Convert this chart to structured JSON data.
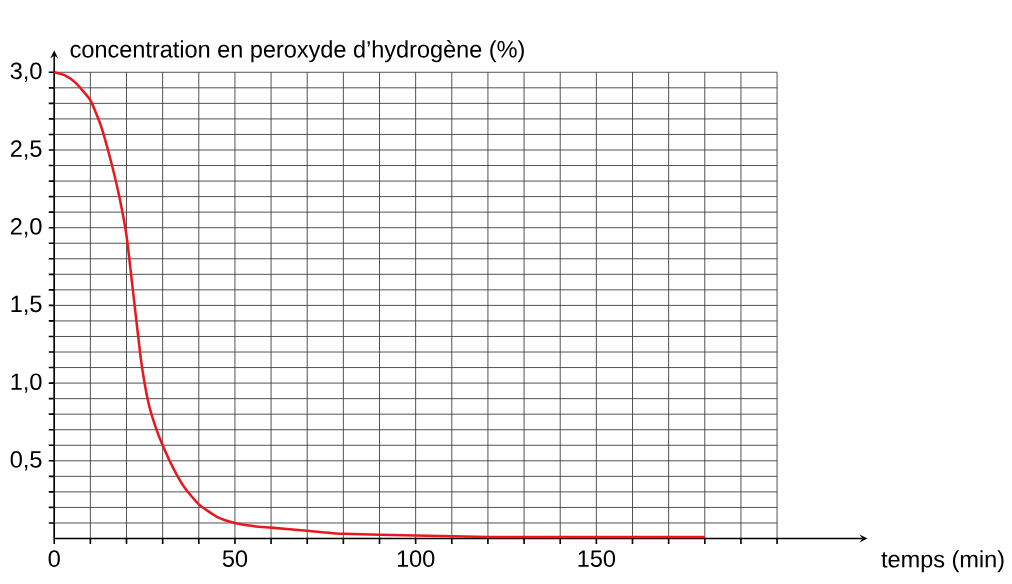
{
  "chart_data": {
    "type": "line",
    "ylabel": "concentration en peroxyde d’hydrogène (%)",
    "xlabel": "temps (min)",
    "x": [
      0,
      3,
      6,
      10,
      13,
      16,
      18,
      20,
      22,
      24,
      26,
      28,
      30,
      33,
      36,
      40,
      45,
      50,
      55,
      60,
      70,
      80,
      100,
      120,
      150,
      180
    ],
    "series": [
      {
        "color": "#e8191e",
        "values": [
          3.0,
          2.98,
          2.93,
          2.82,
          2.65,
          2.4,
          2.2,
          1.95,
          1.55,
          1.15,
          0.88,
          0.72,
          0.6,
          0.45,
          0.33,
          0.22,
          0.14,
          0.1,
          0.08,
          0.07,
          0.05,
          0.03,
          0.02,
          0.01,
          0.01,
          0.01
        ]
      }
    ],
    "xlim": [
      0,
      225
    ],
    "ylim": [
      0,
      3.0
    ],
    "xticks": [
      {
        "value": 0,
        "label": "0"
      },
      {
        "value": 10,
        "label": null
      },
      {
        "value": 20,
        "label": null
      },
      {
        "value": 30,
        "label": null
      },
      {
        "value": 40,
        "label": null
      },
      {
        "value": 50,
        "label": "50"
      },
      {
        "value": 60,
        "label": null
      },
      {
        "value": 70,
        "label": null
      },
      {
        "value": 80,
        "label": null
      },
      {
        "value": 90,
        "label": null
      },
      {
        "value": 100,
        "label": "100"
      },
      {
        "value": 110,
        "label": null
      },
      {
        "value": 120,
        "label": null
      },
      {
        "value": 130,
        "label": null
      },
      {
        "value": 140,
        "label": null
      },
      {
        "value": 150,
        "label": "150"
      },
      {
        "value": 160,
        "label": null
      },
      {
        "value": 170,
        "label": null
      },
      {
        "value": 180,
        "label": null
      },
      {
        "value": 190,
        "label": null
      },
      {
        "value": 200,
        "label": null
      }
    ],
    "yticks": [
      {
        "value": 0.1,
        "label": null
      },
      {
        "value": 0.2,
        "label": null
      },
      {
        "value": 0.3,
        "label": null
      },
      {
        "value": 0.4,
        "label": null
      },
      {
        "value": 0.5,
        "label": "0,5"
      },
      {
        "value": 0.6,
        "label": null
      },
      {
        "value": 0.7,
        "label": null
      },
      {
        "value": 0.8,
        "label": null
      },
      {
        "value": 0.9,
        "label": null
      },
      {
        "value": 1.0,
        "label": "1,0"
      },
      {
        "value": 1.1,
        "label": null
      },
      {
        "value": 1.2,
        "label": null
      },
      {
        "value": 1.3,
        "label": null
      },
      {
        "value": 1.4,
        "label": null
      },
      {
        "value": 1.5,
        "label": "1,5"
      },
      {
        "value": 1.6,
        "label": null
      },
      {
        "value": 1.7,
        "label": null
      },
      {
        "value": 1.8,
        "label": null
      },
      {
        "value": 1.9,
        "label": null
      },
      {
        "value": 2.0,
        "label": "2,0"
      },
      {
        "value": 2.1,
        "label": null
      },
      {
        "value": 2.2,
        "label": null
      },
      {
        "value": 2.3,
        "label": null
      },
      {
        "value": 2.4,
        "label": null
      },
      {
        "value": 2.5,
        "label": "2,5"
      },
      {
        "value": 2.6,
        "label": null
      },
      {
        "value": 2.7,
        "label": null
      },
      {
        "value": 2.8,
        "label": null
      },
      {
        "value": 2.9,
        "label": null
      },
      {
        "value": 3.0,
        "label": "3,0"
      }
    ],
    "grid": true,
    "marker": "none",
    "line_style": "solid"
  }
}
